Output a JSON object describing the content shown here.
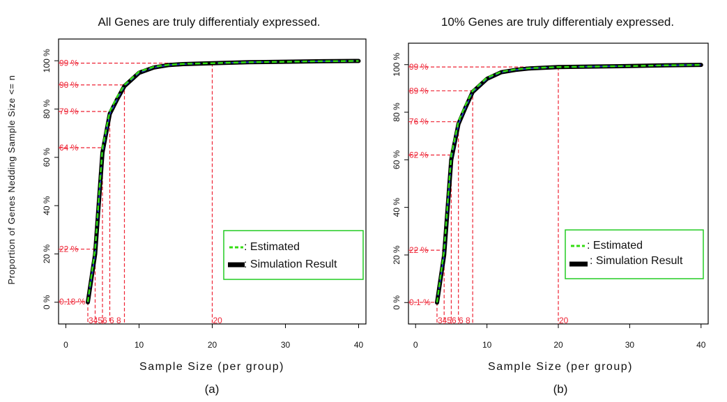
{
  "shared": {
    "ylabel": "Proportion of Genes Nedding Sample Size <= n"
  },
  "chart_data": [
    {
      "type": "line",
      "title": "All Genes are truly differentialy expressed.",
      "caption": "(a)",
      "xlabel": "Sample Size (per group)",
      "ylabel": "Proportion of Genes Nedding Sample Size <= n",
      "xlim": [
        -1,
        41
      ],
      "ylim": [
        -0.09,
        1.09
      ],
      "x_ticks": [
        "0",
        "10",
        "20",
        "30",
        "40"
      ],
      "y_ticks": [
        "0 %",
        "20 %",
        "40 %",
        "60 %",
        "80 %",
        "100 %"
      ],
      "legend_position": "bottom-right",
      "legend_border_color": "#22cc22",
      "series": [
        {
          "name": ": Estimated",
          "color": "#33dd11",
          "style": "dashed",
          "x": [
            3,
            4,
            5,
            6,
            7,
            8,
            10,
            12,
            14,
            16,
            20,
            25,
            30,
            35,
            40
          ],
          "y": [
            0.0018,
            0.22,
            0.64,
            0.79,
            0.85,
            0.9,
            0.955,
            0.975,
            0.983,
            0.987,
            0.99,
            0.994,
            0.996,
            0.998,
            0.999
          ]
        },
        {
          "name": ": Simulation Result",
          "color": "#000000",
          "style": "solid",
          "x": [
            3,
            4,
            5,
            6,
            7,
            8,
            10,
            12,
            14,
            16,
            20,
            25,
            30,
            35,
            40
          ],
          "y": [
            0.0,
            0.2,
            0.62,
            0.78,
            0.84,
            0.895,
            0.95,
            0.972,
            0.982,
            0.986,
            0.99,
            0.994,
            0.996,
            0.998,
            0.999
          ]
        }
      ],
      "markers": {
        "x": [
          3,
          4,
          5,
          6,
          8,
          20
        ],
        "x_labels": [
          "3",
          "4",
          "5",
          "6",
          "8",
          "20"
        ],
        "x_label_text": "3456 6 8",
        "y": [
          0.0018,
          0.22,
          0.64,
          0.79,
          0.9,
          0.99
        ],
        "y_labels": [
          "0.18 %",
          "22 %",
          "64 %",
          "79 %",
          "90 %",
          "99 %"
        ]
      }
    },
    {
      "type": "line",
      "title": "10% Genes are truly differentialy expressed.",
      "caption": "(b)",
      "xlabel": "Sample Size (per group)",
      "ylabel": "Proportion of Genes Nedding Sample Size <= n",
      "xlim": [
        -1,
        41
      ],
      "ylim": [
        -0.09,
        1.09
      ],
      "x_ticks": [
        "0",
        "10",
        "20",
        "30",
        "40"
      ],
      "y_ticks": [
        "0 %",
        "20 %",
        "40 %",
        "60 %",
        "80 %",
        "100 %"
      ],
      "legend_position": "bottom-right",
      "legend_border_color": "#22cc22",
      "series": [
        {
          "name": ": Estimated",
          "color": "#33dd11",
          "style": "dashed",
          "x": [
            3,
            4,
            5,
            6,
            7,
            8,
            10,
            12,
            14,
            16,
            20,
            25,
            30,
            35,
            40
          ],
          "y": [
            0.001,
            0.22,
            0.62,
            0.76,
            0.83,
            0.89,
            0.945,
            0.97,
            0.98,
            0.985,
            0.99,
            0.992,
            0.994,
            0.997,
            0.999
          ]
        },
        {
          "name": ": Simulation Result",
          "color": "#000000",
          "style": "solid",
          "x": [
            3,
            4,
            5,
            6,
            7,
            8,
            10,
            12,
            14,
            16,
            20,
            25,
            30,
            35,
            40
          ],
          "y": [
            0.0,
            0.2,
            0.6,
            0.75,
            0.82,
            0.885,
            0.94,
            0.968,
            0.978,
            0.984,
            0.99,
            0.992,
            0.994,
            0.997,
            0.999
          ]
        }
      ],
      "markers": {
        "x": [
          3,
          4,
          5,
          6,
          8,
          20
        ],
        "x_labels": [
          "3",
          "4",
          "5",
          "6",
          "8",
          "20"
        ],
        "x_label_text": "3456 6 8",
        "y": [
          0.001,
          0.22,
          0.62,
          0.76,
          0.89,
          0.99
        ],
        "y_labels": [
          "0.1 %",
          "22 %",
          "62 %",
          "76 %",
          "89 %",
          "99 %"
        ]
      }
    }
  ]
}
